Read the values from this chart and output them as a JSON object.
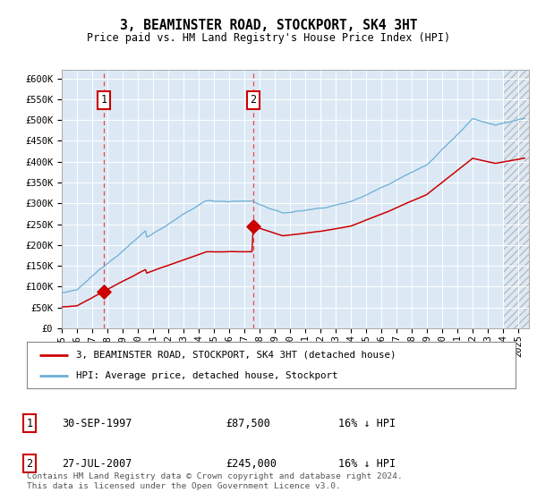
{
  "title": "3, BEAMINSTER ROAD, STOCKPORT, SK4 3HT",
  "subtitle": "Price paid vs. HM Land Registry's House Price Index (HPI)",
  "background_color": "#ffffff",
  "plot_bg_color": "#dce9f5",
  "ylim": [
    0,
    620000
  ],
  "yticks": [
    0,
    50000,
    100000,
    150000,
    200000,
    250000,
    300000,
    350000,
    400000,
    450000,
    500000,
    550000,
    600000
  ],
  "ytick_labels": [
    "£0",
    "£50K",
    "£100K",
    "£150K",
    "£200K",
    "£250K",
    "£300K",
    "£350K",
    "£400K",
    "£450K",
    "£500K",
    "£550K",
    "£600K"
  ],
  "sale1_year": 1997.75,
  "sale1_price": 87500,
  "sale2_year": 2007.58,
  "sale2_price": 245000,
  "legend_line1": "3, BEAMINSTER ROAD, STOCKPORT, SK4 3HT (detached house)",
  "legend_line2": "HPI: Average price, detached house, Stockport",
  "table_row1": [
    "1",
    "30-SEP-1997",
    "£87,500",
    "16% ↓ HPI"
  ],
  "table_row2": [
    "2",
    "27-JUL-2007",
    "£245,000",
    "16% ↓ HPI"
  ],
  "footer": "Contains HM Land Registry data © Crown copyright and database right 2024.\nThis data is licensed under the Open Government Licence v3.0.",
  "hpi_color": "#6baed6",
  "price_color": "#cc0000",
  "dashed_line_color": "#ee4444"
}
